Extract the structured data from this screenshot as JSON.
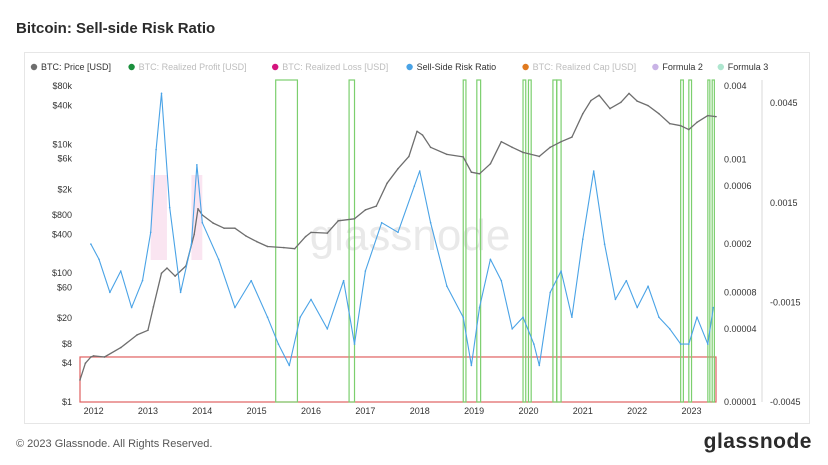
{
  "page": {
    "title": "Bitcoin: Sell-side Risk Ratio",
    "copyright": "© 2023 Glassnode. All Rights Reserved.",
    "brand": "glassnode",
    "watermark": "glassnode"
  },
  "chart_data": {
    "type": "line",
    "title": "Bitcoin: Sell-side Risk Ratio",
    "legend": [
      {
        "name": "BTC: Price [USD]",
        "color": "#6e6e6e",
        "active": true
      },
      {
        "name": "BTC: Realized Profit [USD]",
        "color": "#1a8f3c",
        "active": false
      },
      {
        "name": "BTC: Realized Loss [USD]",
        "color": "#d4147e",
        "active": false
      },
      {
        "name": "Sell-Side Risk Ratio",
        "color": "#4aa3e6",
        "active": true
      },
      {
        "name": "BTC: Realized Cap [USD]",
        "color": "#e07a1f",
        "active": false
      },
      {
        "name": "Formula 2",
        "color": "#c9b3e6",
        "active": true
      },
      {
        "name": "Formula 3",
        "color": "#aee6cf",
        "active": true
      }
    ],
    "legend_position": "top",
    "x_ticks": [
      "2012",
      "2013",
      "2014",
      "2015",
      "2016",
      "2017",
      "2018",
      "2019",
      "2020",
      "2021",
      "2022",
      "2023"
    ],
    "x_range": [
      2011.75,
      2023.45
    ],
    "price_axis": {
      "scale": "log",
      "ticks": [
        "$80k",
        "$40k",
        "$10k",
        "$6k",
        "$2k",
        "$800",
        "$400",
        "$100",
        "$60",
        "$20",
        "$8",
        "$4",
        "$1"
      ],
      "tick_values": [
        80000,
        40000,
        10000,
        6000,
        2000,
        800,
        400,
        100,
        60,
        20,
        8,
        4,
        1
      ],
      "range": [
        1,
        100000
      ]
    },
    "ratio_axis": {
      "scale": "log",
      "ticks": [
        "0.004",
        "0.001",
        "0.0006",
        "0.0002",
        "0.00008",
        "0.00004",
        "0.00001"
      ],
      "tick_values": [
        0.004,
        0.001,
        0.0006,
        0.0002,
        8e-05,
        4e-05,
        1e-05
      ],
      "range": [
        1e-05,
        0.0045
      ]
    },
    "formula_axis": {
      "ticks": [
        "0.0045",
        "0.0015",
        "-0.0015",
        "-0.0045"
      ],
      "tick_values": [
        0.0045,
        0.0015,
        -0.0015,
        -0.0045
      ],
      "range": [
        -0.0045,
        0.0052
      ]
    },
    "series": [
      {
        "name": "BTC: Price [USD]",
        "color": "#6e6e6e",
        "x": [
          2011.75,
          2011.85,
          2011.95,
          2012.0,
          2012.2,
          2012.5,
          2012.8,
          2013.0,
          2013.1,
          2013.25,
          2013.35,
          2013.5,
          2013.7,
          2013.85,
          2013.92,
          2014.0,
          2014.2,
          2014.4,
          2014.6,
          2014.8,
          2015.0,
          2015.2,
          2015.5,
          2015.7,
          2015.9,
          2016.0,
          2016.3,
          2016.5,
          2016.8,
          2017.0,
          2017.2,
          2017.4,
          2017.6,
          2017.8,
          2017.95,
          2018.05,
          2018.2,
          2018.5,
          2018.8,
          2018.95,
          2019.1,
          2019.3,
          2019.5,
          2019.7,
          2019.9,
          2020.2,
          2020.4,
          2020.6,
          2020.8,
          2021.0,
          2021.15,
          2021.3,
          2021.5,
          2021.7,
          2021.85,
          2022.0,
          2022.2,
          2022.4,
          2022.6,
          2022.8,
          2022.95,
          2023.1,
          2023.3,
          2023.45
        ],
        "values": [
          2.2,
          4,
          5,
          5.2,
          5,
          7,
          11,
          13,
          30,
          100,
          120,
          90,
          130,
          400,
          1000,
          800,
          600,
          500,
          500,
          380,
          310,
          260,
          250,
          240,
          370,
          430,
          420,
          650,
          700,
          960,
          1100,
          2500,
          4200,
          6500,
          16000,
          14000,
          9000,
          7000,
          6400,
          3700,
          3500,
          5000,
          11000,
          9000,
          7500,
          6500,
          9000,
          11000,
          13000,
          30000,
          48000,
          58000,
          36000,
          45000,
          62000,
          47000,
          40000,
          30000,
          21000,
          19500,
          17000,
          22000,
          28000,
          27000
        ]
      },
      {
        "name": "Sell-Side Risk Ratio",
        "color": "#4aa3e6",
        "x": [
          2011.95,
          2012.1,
          2012.3,
          2012.5,
          2012.7,
          2012.9,
          2013.05,
          2013.15,
          2013.25,
          2013.4,
          2013.6,
          2013.8,
          2013.9,
          2014.0,
          2014.3,
          2014.6,
          2014.9,
          2015.2,
          2015.4,
          2015.6,
          2015.8,
          2016.0,
          2016.3,
          2016.6,
          2016.8,
          2017.0,
          2017.3,
          2017.6,
          2017.9,
          2018.0,
          2018.2,
          2018.5,
          2018.8,
          2018.95,
          2019.1,
          2019.3,
          2019.5,
          2019.7,
          2019.9,
          2020.1,
          2020.2,
          2020.4,
          2020.6,
          2020.8,
          2021.0,
          2021.2,
          2021.4,
          2021.6,
          2021.8,
          2022.0,
          2022.2,
          2022.4,
          2022.6,
          2022.8,
          2022.95,
          2023.1,
          2023.3,
          2023.4
        ],
        "values": [
          0.0002,
          0.00015,
          8e-05,
          0.00012,
          6e-05,
          0.0001,
          0.00025,
          0.0012,
          0.0035,
          0.0004,
          8e-05,
          0.0002,
          0.0009,
          0.0003,
          0.00015,
          6e-05,
          0.0001,
          5e-05,
          3e-05,
          2e-05,
          5e-05,
          7e-05,
          4e-05,
          0.0001,
          3e-05,
          0.00012,
          0.0003,
          0.00025,
          0.0006,
          0.0008,
          0.0003,
          9e-05,
          5e-05,
          2e-05,
          6e-05,
          0.00015,
          0.0001,
          4e-05,
          5e-05,
          3e-05,
          2e-05,
          8e-05,
          0.00012,
          5e-05,
          0.00022,
          0.0008,
          0.0002,
          7e-05,
          0.0001,
          6e-05,
          9e-05,
          5e-05,
          4e-05,
          3e-05,
          3e-05,
          5e-05,
          3e-05,
          6e-05
        ]
      }
    ],
    "annotations": {
      "green_windows": [
        [
          2015.35,
          2015.75
        ],
        [
          2016.7,
          2016.8
        ],
        [
          2018.8,
          2018.85
        ],
        [
          2019.05,
          2019.12
        ],
        [
          2019.9,
          2019.95
        ],
        [
          2020.0,
          2020.05
        ],
        [
          2020.45,
          2020.52
        ],
        [
          2020.52,
          2020.6
        ],
        [
          2022.8,
          2022.85
        ],
        [
          2022.95,
          2023.0
        ],
        [
          2023.3,
          2023.33
        ],
        [
          2023.38,
          2023.42
        ]
      ],
      "red_band_price": [
        1,
        5
      ]
    }
  }
}
